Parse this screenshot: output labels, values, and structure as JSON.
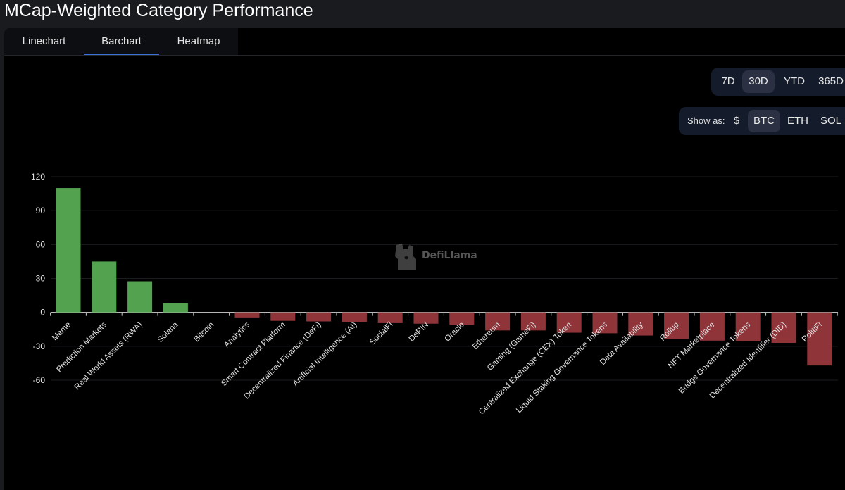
{
  "title": "MCap-Weighted Category Performance",
  "tabs": [
    {
      "label": "Linechart",
      "active": false
    },
    {
      "label": "Barchart",
      "active": true
    },
    {
      "label": "Heatmap",
      "active": false
    }
  ],
  "periods": [
    {
      "label": "7D",
      "active": false
    },
    {
      "label": "30D",
      "active": true
    },
    {
      "label": "YTD",
      "active": false
    },
    {
      "label": "365D",
      "active": false
    }
  ],
  "show_as": {
    "label": "Show as:",
    "options": [
      {
        "label": "$",
        "active": false
      },
      {
        "label": "BTC",
        "active": true
      },
      {
        "label": "ETH",
        "active": false
      },
      {
        "label": "SOL",
        "active": false
      }
    ]
  },
  "watermark": "DefiLlama",
  "colors": {
    "positive": "#52a24f",
    "negative": "#8f353a",
    "tab_active": "#3f6fd8",
    "grid": "#1b1c20"
  },
  "chart_data": {
    "type": "bar",
    "ylim": [
      -60,
      120
    ],
    "yticks": [
      120,
      90,
      60,
      30,
      0,
      -30,
      -60
    ],
    "grid": true,
    "categories": [
      "Meme",
      "Prediction Markets",
      "Real World Assets (RWA)",
      "Solana",
      "Bitcoin",
      "Analytics",
      "Smart Contract Platform",
      "Decentralized Finance (DeFi)",
      "Artificial Intelligence (AI)",
      "SocialFi",
      "DePIN",
      "Oracle",
      "Ethereum",
      "Gaming (GameFi)",
      "Centralized Exchange (CEX) Token",
      "Liquid Staking Governance Tokens",
      "Data Availability",
      "Rollup",
      "NFT Marketplace",
      "Bridge Governance Tokens",
      "Decentralized Identifier (DID)",
      "PolitiFi"
    ],
    "values": [
      110,
      45,
      27.5,
      8,
      0,
      -4.5,
      -7.5,
      -8,
      -8.5,
      -9.5,
      -10,
      -11,
      -16,
      -16,
      -18,
      -18.5,
      -20.5,
      -23.5,
      -25,
      -25.5,
      -27,
      -47
    ]
  }
}
